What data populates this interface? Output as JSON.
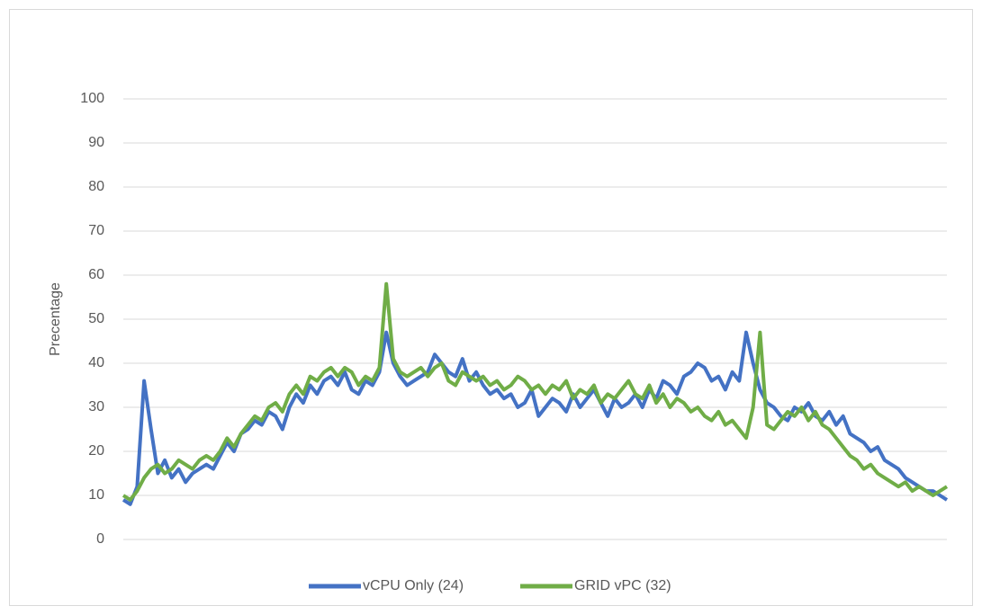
{
  "chart_data": {
    "type": "line",
    "y_label": "Precentage",
    "ylim": [
      0,
      100
    ],
    "yticks": [
      0,
      10,
      20,
      30,
      40,
      50,
      60,
      70,
      80,
      90,
      100
    ],
    "grid": true,
    "legend": "bottom",
    "series": [
      {
        "name": "vCPU Only (24)",
        "color": "#4472c4",
        "values": [
          9,
          8,
          12,
          36,
          25,
          15,
          18,
          14,
          16,
          13,
          15,
          16,
          17,
          16,
          19,
          22,
          20,
          24,
          25,
          27,
          26,
          29,
          28,
          25,
          30,
          33,
          31,
          35,
          33,
          36,
          37,
          35,
          38,
          34,
          33,
          36,
          35,
          38,
          47,
          40,
          37,
          35,
          36,
          37,
          38,
          42,
          40,
          38,
          37,
          41,
          36,
          38,
          35,
          33,
          34,
          32,
          33,
          30,
          31,
          34,
          28,
          30,
          32,
          31,
          29,
          33,
          30,
          32,
          34,
          31,
          28,
          32,
          30,
          31,
          33,
          30,
          34,
          32,
          36,
          35,
          33,
          37,
          38,
          40,
          39,
          36,
          37,
          34,
          38,
          36,
          47,
          40,
          34,
          31,
          30,
          28,
          27,
          30,
          29,
          31,
          28,
          27,
          29,
          26,
          28,
          24,
          23,
          22,
          20,
          21,
          18,
          17,
          16,
          14,
          13,
          12,
          11,
          11,
          10,
          9
        ]
      },
      {
        "name": "GRID vPC (32)",
        "color": "#70ad47",
        "values": [
          10,
          9,
          11,
          14,
          16,
          17,
          15,
          16,
          18,
          17,
          16,
          18,
          19,
          18,
          20,
          23,
          21,
          24,
          26,
          28,
          27,
          30,
          31,
          29,
          33,
          35,
          33,
          37,
          36,
          38,
          39,
          37,
          39,
          38,
          35,
          37,
          36,
          39,
          58,
          41,
          38,
          37,
          38,
          39,
          37,
          39,
          40,
          36,
          35,
          38,
          37,
          36,
          37,
          35,
          36,
          34,
          35,
          37,
          36,
          34,
          35,
          33,
          35,
          34,
          36,
          32,
          34,
          33,
          35,
          31,
          33,
          32,
          34,
          36,
          33,
          32,
          35,
          31,
          33,
          30,
          32,
          31,
          29,
          30,
          28,
          27,
          29,
          26,
          27,
          25,
          23,
          30,
          47,
          26,
          25,
          27,
          29,
          28,
          30,
          27,
          29,
          26,
          25,
          23,
          21,
          19,
          18,
          16,
          17,
          15,
          14,
          13,
          12,
          13,
          11,
          12,
          11,
          10,
          11,
          12
        ]
      }
    ]
  }
}
